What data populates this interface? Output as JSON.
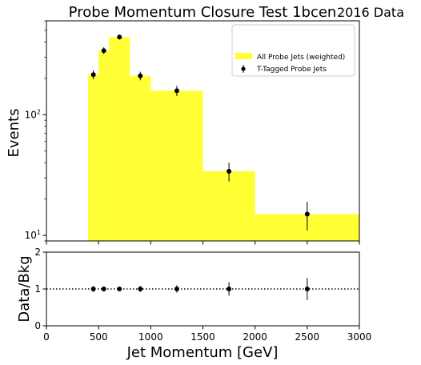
{
  "chart_data": [
    {
      "type": "histogram",
      "title": "Probe Momentum Closure Test 1bcen",
      "corner_label": "2016 Data",
      "ylabel": "Events",
      "yscale": "log",
      "ylim": [
        9,
        600
      ],
      "xlim": [
        0,
        3000
      ],
      "y_ticks": [
        {
          "value": 10,
          "label": "10",
          "sup": "1"
        },
        {
          "value": 100,
          "label": "10",
          "sup": "2"
        }
      ],
      "legend": {
        "placement": "top-right",
        "entries": [
          "All Probe Jets (weighted)",
          "T-Tagged Probe Jets"
        ]
      },
      "series": [
        {
          "name": "All Probe Jets (weighted)",
          "style": "filled-step",
          "color": "#ffff33",
          "bins": [
            {
              "x0": 400,
              "x1": 500,
              "value": 215
            },
            {
              "x0": 500,
              "x1": 600,
              "value": 340
            },
            {
              "x0": 600,
              "x1": 800,
              "value": 440
            },
            {
              "x0": 800,
              "x1": 1000,
              "value": 210
            },
            {
              "x0": 1000,
              "x1": 1500,
              "value": 158
            },
            {
              "x0": 1500,
              "x1": 2000,
              "value": 34
            },
            {
              "x0": 2000,
              "x1": 3000,
              "value": 15
            }
          ]
        },
        {
          "name": "T-Tagged Probe Jets",
          "style": "points-with-errors",
          "color": "#000000",
          "points": [
            {
              "x": 450,
              "y": 215,
              "err": 18
            },
            {
              "x": 550,
              "y": 340,
              "err": 22
            },
            {
              "x": 700,
              "y": 440,
              "err": 20
            },
            {
              "x": 900,
              "y": 210,
              "err": 17
            },
            {
              "x": 1250,
              "y": 158,
              "err": 15
            },
            {
              "x": 1750,
              "y": 34,
              "err": 6
            },
            {
              "x": 2500,
              "y": 15,
              "err": 4
            }
          ]
        }
      ]
    },
    {
      "type": "scatter",
      "ylabel": "Data/Bkg",
      "xlabel": "Jet Momentum [GeV]",
      "xlim": [
        0,
        3000
      ],
      "ylim": [
        0,
        2
      ],
      "x_ticks": [
        0,
        500,
        1000,
        1500,
        2000,
        2500,
        3000
      ],
      "y_ticks": [
        0,
        1,
        2
      ],
      "reference_line": 1,
      "points": [
        {
          "x": 450,
          "y": 1.0,
          "err": 0.08
        },
        {
          "x": 550,
          "y": 1.0,
          "err": 0.07
        },
        {
          "x": 700,
          "y": 1.0,
          "err": 0.05
        },
        {
          "x": 900,
          "y": 1.0,
          "err": 0.08
        },
        {
          "x": 1250,
          "y": 1.0,
          "err": 0.1
        },
        {
          "x": 1750,
          "y": 1.0,
          "err": 0.18
        },
        {
          "x": 2500,
          "y": 1.0,
          "err": 0.3
        }
      ]
    }
  ]
}
